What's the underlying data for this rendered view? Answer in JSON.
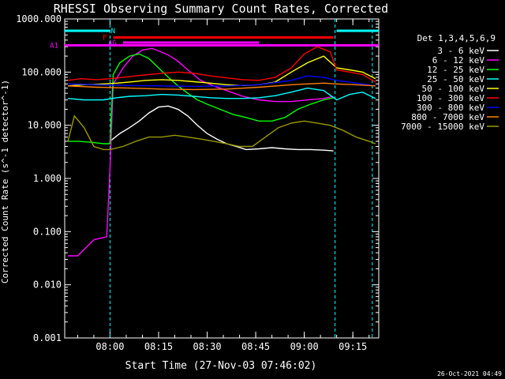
{
  "chart_data": {
    "type": "line",
    "title": "RHESSI Observing Summary Count Rates, Corrected",
    "xlabel": "Start Time (27-Nov-03 07:46:02)",
    "ylabel": "Corrected Count Rate (s^-1 detector^-1)",
    "y_scale": "log",
    "ylim": [
      0.001,
      1000
    ],
    "xlim_minutes_since_0746": [
      0,
      97
    ],
    "x_ticks": [
      "08:00",
      "08:15",
      "08:30",
      "08:45",
      "09:00",
      "09:15"
    ],
    "x_tick_minutes": [
      14,
      29,
      44,
      59,
      74,
      89
    ],
    "y_ticks": [
      "0.001",
      "0.010",
      "0.100",
      "1.000",
      "10.000",
      "100.000",
      "1000.000"
    ],
    "legend_title": "Det 1,3,4,5,6,9",
    "legend_position": "right",
    "timestamp": "26-Oct-2021 04:49",
    "flags": [
      {
        "label": "N",
        "color": "#00ffff",
        "segments": [
          [
            0,
            14
          ],
          [
            84,
            97
          ]
        ]
      },
      {
        "label": "F",
        "color": "#ff0000",
        "segments": [
          [
            15,
            83
          ]
        ]
      },
      {
        "label": "AG",
        "color": "#ff00ff",
        "segments": [
          [
            18,
            60
          ]
        ]
      },
      {
        "label": "A1",
        "color": "#ff00ff",
        "segments": [
          [
            0,
            97
          ]
        ]
      }
    ],
    "vlines": [
      {
        "t": 14,
        "color": "#00ffff"
      },
      {
        "t": 83.5,
        "color": "#00ffff"
      },
      {
        "t": 95,
        "color": "#00ffff"
      }
    ],
    "series": [
      {
        "name": "3 - 6 keV",
        "color": "#ffffff",
        "x": [
          14,
          17,
          20,
          23,
          26,
          29,
          32,
          35,
          38,
          41,
          44,
          47,
          50,
          53,
          56,
          60,
          64,
          68,
          72,
          76,
          80,
          83
        ],
        "y": [
          5,
          7,
          9,
          12,
          17,
          22,
          23,
          20,
          15,
          10,
          7,
          5.5,
          4.5,
          4,
          3.5,
          3.6,
          3.8,
          3.6,
          3.5,
          3.5,
          3.4,
          3.3
        ]
      },
      {
        "name": "6 - 12 keV",
        "color": "#ff00ff",
        "x": [
          1,
          4,
          9,
          11,
          13,
          14,
          15,
          18,
          21,
          24,
          27,
          29,
          32,
          35,
          38,
          42,
          46,
          50,
          55,
          60,
          65,
          70,
          75,
          80,
          83
        ],
        "y": [
          0.035,
          0.035,
          0.07,
          0.075,
          0.08,
          1.5,
          60,
          120,
          200,
          260,
          280,
          250,
          210,
          160,
          110,
          70,
          55,
          45,
          35,
          30,
          28,
          28,
          30,
          32,
          35
        ]
      },
      {
        "name": "12 - 25 keV",
        "color": "#00ff00",
        "x": [
          1,
          4,
          8,
          12,
          14,
          15,
          17,
          20,
          23,
          26,
          29,
          32,
          35,
          38,
          41,
          44,
          48,
          52,
          56,
          60,
          64,
          68,
          72,
          76,
          80,
          83
        ],
        "y": [
          5,
          5,
          4.8,
          4.5,
          4.5,
          90,
          150,
          200,
          220,
          180,
          120,
          80,
          55,
          40,
          30,
          25,
          20,
          16,
          14,
          12,
          12,
          14,
          20,
          25,
          30,
          33
        ]
      },
      {
        "name": "25 - 50 keV",
        "color": "#00ffff",
        "x": [
          1,
          6,
          12,
          16,
          20,
          25,
          30,
          35,
          40,
          45,
          50,
          55,
          60,
          65,
          70,
          75,
          80,
          84,
          88,
          92,
          96
        ],
        "y": [
          32,
          30,
          30,
          33,
          35,
          36,
          38,
          37,
          35,
          33,
          32,
          32,
          33,
          36,
          42,
          50,
          45,
          30,
          38,
          42,
          32
        ]
      },
      {
        "name": "50 - 100 keV",
        "color": "#ffff00",
        "x": [
          1,
          6,
          12,
          16,
          20,
          25,
          30,
          35,
          40,
          45,
          50,
          55,
          60,
          65,
          70,
          75,
          80,
          84,
          88,
          92,
          96
        ],
        "y": [
          55,
          58,
          60,
          62,
          65,
          70,
          72,
          70,
          66,
          62,
          58,
          56,
          58,
          65,
          100,
          150,
          200,
          120,
          110,
          100,
          75
        ]
      },
      {
        "name": "100 - 300 keV",
        "color": "#ff0000",
        "x": [
          1,
          5,
          10,
          14,
          18,
          22,
          26,
          30,
          35,
          40,
          45,
          50,
          55,
          60,
          65,
          70,
          74,
          78,
          82,
          84,
          88,
          92,
          96
        ],
        "y": [
          70,
          75,
          72,
          75,
          80,
          85,
          90,
          95,
          100,
          95,
          85,
          78,
          72,
          70,
          80,
          120,
          220,
          300,
          240,
          110,
          100,
          90,
          65
        ]
      },
      {
        "name": "300 - 800 keV",
        "color": "#0000ff",
        "x": [
          1,
          10,
          20,
          30,
          40,
          50,
          60,
          70,
          75,
          80,
          84,
          88,
          92,
          96
        ],
        "y": [
          60,
          58,
          56,
          55,
          54,
          55,
          58,
          70,
          85,
          80,
          70,
          65,
          60,
          55
        ]
      },
      {
        "name": "800 - 7000 keV",
        "color": "#ff8000",
        "x": [
          1,
          10,
          20,
          30,
          40,
          50,
          60,
          70,
          80,
          84,
          90,
          96
        ],
        "y": [
          55,
          52,
          50,
          48,
          47,
          48,
          52,
          58,
          62,
          60,
          58,
          55
        ]
      },
      {
        "name": "7000 - 15000 keV",
        "color": "#999900",
        "x": [
          1,
          3,
          6,
          9,
          12,
          14,
          18,
          22,
          26,
          30,
          34,
          38,
          42,
          46,
          50,
          54,
          58,
          62,
          66,
          70,
          74,
          78,
          82,
          86,
          90,
          94,
          96
        ],
        "y": [
          5,
          15,
          9,
          4,
          3.5,
          3.5,
          4,
          5,
          6,
          6,
          6.5,
          6,
          5.5,
          5,
          4.5,
          4,
          4,
          6,
          9,
          11,
          12,
          11,
          10,
          8,
          6,
          5,
          4.5
        ]
      }
    ]
  }
}
